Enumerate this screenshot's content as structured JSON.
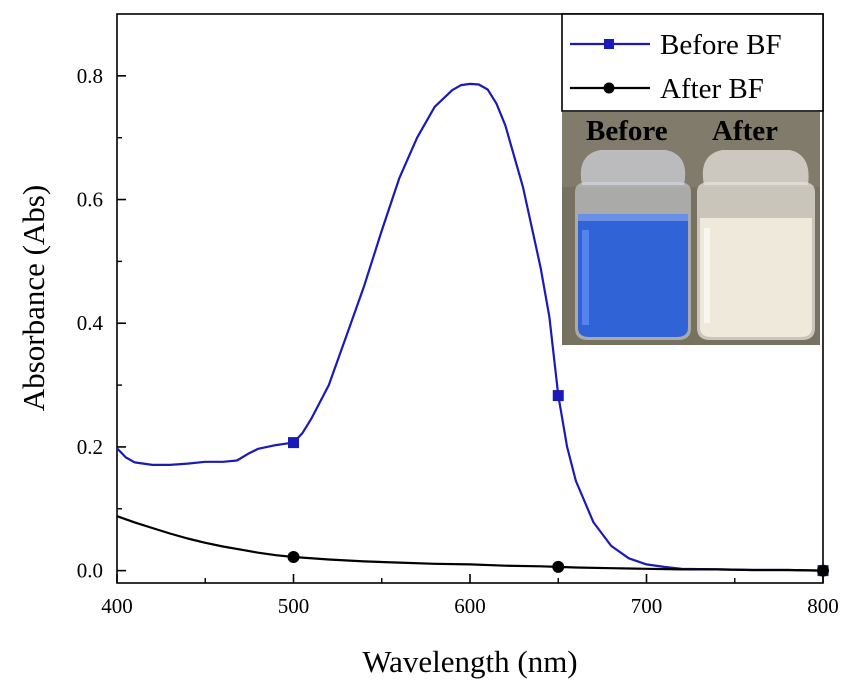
{
  "chart_data": {
    "type": "line",
    "xlabel": "Wavelength (nm)",
    "ylabel": "Absorbance (Abs)",
    "xlim": [
      400,
      800
    ],
    "ylim": [
      -0.02,
      0.9
    ],
    "xticks": [
      "400",
      "500",
      "600",
      "700",
      "800"
    ],
    "yticks": [
      "0.0",
      "0.2",
      "0.4",
      "0.6",
      "0.8"
    ],
    "grid": false,
    "legend_position": "top-right",
    "series": [
      {
        "name": "Before BF",
        "color": "#1a1ab8",
        "marker": "square",
        "marker_x": [
          500,
          650,
          800
        ],
        "x": [
          400,
          405,
          410,
          420,
          430,
          440,
          450,
          460,
          468,
          475,
          480,
          485,
          490,
          495,
          500,
          505,
          510,
          520,
          530,
          540,
          550,
          560,
          570,
          580,
          590,
          595,
          600,
          605,
          610,
          615,
          620,
          630,
          640,
          645,
          650,
          655,
          660,
          670,
          680,
          690,
          700,
          710,
          720,
          740,
          760,
          780,
          800
        ],
        "y": [
          0.198,
          0.183,
          0.175,
          0.171,
          0.171,
          0.173,
          0.176,
          0.176,
          0.178,
          0.19,
          0.197,
          0.2,
          0.203,
          0.205,
          0.207,
          0.222,
          0.245,
          0.3,
          0.38,
          0.46,
          0.55,
          0.635,
          0.7,
          0.75,
          0.777,
          0.785,
          0.787,
          0.786,
          0.778,
          0.755,
          0.72,
          0.62,
          0.49,
          0.41,
          0.283,
          0.2,
          0.145,
          0.078,
          0.04,
          0.02,
          0.01,
          0.006,
          0.003,
          0.002,
          0.001,
          0.001,
          0.0
        ]
      },
      {
        "name": "After BF",
        "color": "#000000",
        "marker": "circle",
        "marker_x": [
          500,
          650,
          800
        ],
        "x": [
          400,
          410,
          420,
          430,
          440,
          450,
          460,
          470,
          480,
          490,
          500,
          520,
          540,
          560,
          580,
          600,
          620,
          640,
          650,
          660,
          680,
          700,
          720,
          740,
          760,
          780,
          800
        ],
        "y": [
          0.088,
          0.078,
          0.069,
          0.06,
          0.052,
          0.045,
          0.039,
          0.034,
          0.029,
          0.025,
          0.022,
          0.018,
          0.015,
          0.013,
          0.011,
          0.01,
          0.008,
          0.007,
          0.006,
          0.005,
          0.004,
          0.003,
          0.002,
          0.002,
          0.001,
          0.001,
          0.0
        ]
      }
    ],
    "inset_photo": {
      "labels": [
        "Before",
        "After"
      ],
      "colors": {
        "before_liquid": "#2f63d6",
        "after_liquid": "#efe9dc",
        "background": "#77715f"
      }
    }
  }
}
